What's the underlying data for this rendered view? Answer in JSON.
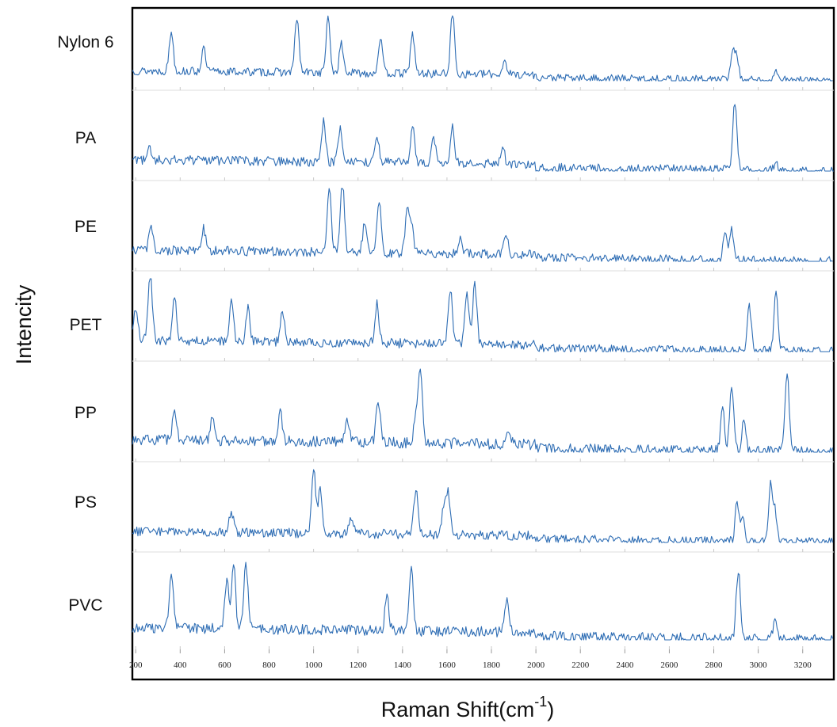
{
  "chart_data": {
    "type": "line",
    "ylabel": "Intencity",
    "xlabel": "Raman Shift(cm",
    "xlabel_sup": "-1",
    "xlabel_close": ")",
    "xlim": [
      185,
      3340
    ],
    "xticks": [
      200,
      400,
      600,
      800,
      1000,
      1200,
      1400,
      1600,
      1800,
      2000,
      2200,
      2400,
      2600,
      2800,
      3000,
      3200
    ],
    "line_color": "#2e6db4",
    "layout": "stacked panels, shared x axis",
    "grid": false,
    "series": [
      {
        "name": "Nylon 6",
        "x_end": 3335,
        "peaks": [
          [
            360,
            0.62
          ],
          [
            505,
            0.35
          ],
          [
            925,
            0.85
          ],
          [
            1065,
            0.82
          ],
          [
            1125,
            0.45
          ],
          [
            1300,
            0.55
          ],
          [
            1445,
            0.62
          ],
          [
            1625,
            0.95
          ],
          [
            1860,
            0.22
          ],
          [
            2885,
            0.48
          ],
          [
            2905,
            0.32
          ],
          [
            3085,
            0.15
          ]
        ]
      },
      {
        "name": "PA",
        "x_end": 3340,
        "peaks": [
          [
            260,
            0.22
          ],
          [
            1045,
            0.55
          ],
          [
            1120,
            0.48
          ],
          [
            1285,
            0.38
          ],
          [
            1445,
            0.52
          ],
          [
            1540,
            0.32
          ],
          [
            1625,
            0.52
          ],
          [
            1850,
            0.25
          ],
          [
            2895,
            0.95
          ],
          [
            3080,
            0.12
          ]
        ]
      },
      {
        "name": "PE",
        "x_end": 3335,
        "peaks": [
          [
            270,
            0.32
          ],
          [
            505,
            0.3
          ],
          [
            1070,
            0.92
          ],
          [
            1130,
            0.97
          ],
          [
            1230,
            0.4
          ],
          [
            1295,
            0.68
          ],
          [
            1420,
            0.55
          ],
          [
            1440,
            0.4
          ],
          [
            1660,
            0.18
          ],
          [
            1865,
            0.25
          ],
          [
            2850,
            0.38
          ],
          [
            2880,
            0.42
          ]
        ]
      },
      {
        "name": "PET",
        "x_end": 3335,
        "peaks": [
          [
            200,
            0.45
          ],
          [
            265,
            0.95
          ],
          [
            375,
            0.65
          ],
          [
            630,
            0.58
          ],
          [
            705,
            0.45
          ],
          [
            860,
            0.4
          ],
          [
            1285,
            0.55
          ],
          [
            1615,
            0.75
          ],
          [
            1690,
            0.68
          ],
          [
            1725,
            0.82
          ],
          [
            2960,
            0.6
          ],
          [
            3080,
            0.82
          ]
        ]
      },
      {
        "name": "PP",
        "x_end": 3335,
        "peaks": [
          [
            375,
            0.38
          ],
          [
            545,
            0.28
          ],
          [
            850,
            0.38
          ],
          [
            1150,
            0.3
          ],
          [
            1290,
            0.5
          ],
          [
            1460,
            0.3
          ],
          [
            1480,
            0.92
          ],
          [
            1875,
            0.18
          ],
          [
            2840,
            0.48
          ],
          [
            2880,
            0.78
          ],
          [
            2935,
            0.38
          ],
          [
            3130,
            0.95
          ]
        ]
      },
      {
        "name": "PS",
        "x_end": 3335,
        "peaks": [
          [
            630,
            0.3
          ],
          [
            1000,
            0.9
          ],
          [
            1030,
            0.62
          ],
          [
            1170,
            0.22
          ],
          [
            1460,
            0.62
          ],
          [
            1585,
            0.35
          ],
          [
            1605,
            0.6
          ],
          [
            2905,
            0.55
          ],
          [
            2930,
            0.32
          ],
          [
            3055,
            0.75
          ],
          [
            3075,
            0.42
          ]
        ]
      },
      {
        "name": "PVC",
        "x_end": 3335,
        "peaks": [
          [
            360,
            0.72
          ],
          [
            610,
            0.6
          ],
          [
            640,
            0.82
          ],
          [
            695,
            0.85
          ],
          [
            1330,
            0.42
          ],
          [
            1440,
            0.75
          ],
          [
            1870,
            0.38
          ],
          [
            2910,
            0.88
          ],
          [
            3075,
            0.22
          ]
        ]
      }
    ]
  }
}
